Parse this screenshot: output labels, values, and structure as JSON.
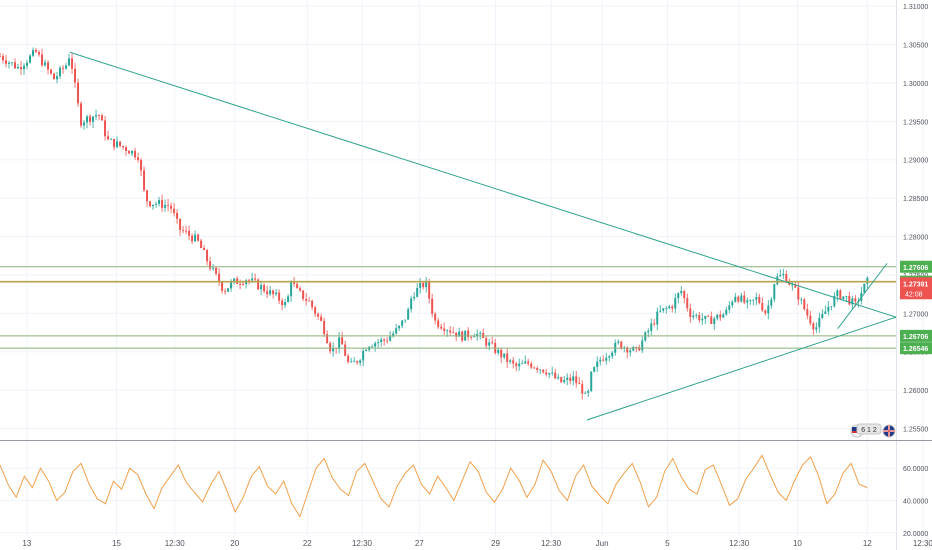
{
  "colors": {
    "up": "#26a69a",
    "down": "#ef5350",
    "trendline": "#2ea28f",
    "level_line": "#8bb174",
    "resistance_line": "#b7a34a",
    "rsi_line": "#f0a04b",
    "current_price_bg": "#ef5350",
    "level_label_bg": "#4caf50",
    "separator": "#9598a1",
    "grid": "#f0f3fa",
    "axis_text": "#50535e"
  },
  "icons": [
    "us-flag-event-icon",
    "uk-flag-event-icon"
  ],
  "event_badge": {
    "text": "6 1 2"
  },
  "chart_data": {
    "type": "candlestick",
    "price_axis": {
      "ticks": [
        "1.31000",
        "1.30500",
        "1.30000",
        "1.29500",
        "1.29000",
        "1.28500",
        "1.28000",
        "1.27500",
        "1.27000",
        "1.26500",
        "1.26000",
        "1.25500"
      ],
      "ylim": [
        1.2535,
        1.3108
      ]
    },
    "time_axis": {
      "ticks": [
        {
          "label": "13",
          "t": 0.03
        },
        {
          "label": "15",
          "t": 0.13
        },
        {
          "label": "12:30",
          "t": 0.195
        },
        {
          "label": "20",
          "t": 0.262
        },
        {
          "label": "22",
          "t": 0.343
        },
        {
          "label": "12:30",
          "t": 0.404
        },
        {
          "label": "27",
          "t": 0.468
        },
        {
          "label": "29",
          "t": 0.553
        },
        {
          "label": "12:30",
          "t": 0.615
        },
        {
          "label": "Jun",
          "t": 0.672
        },
        {
          "label": "5",
          "t": 0.745
        },
        {
          "label": "12:30",
          "t": 0.825
        },
        {
          "label": "10",
          "t": 0.89
        },
        {
          "label": "12",
          "t": 0.968
        },
        {
          "label": "12:30",
          "t": 1.03
        }
      ]
    },
    "price_path": [
      [
        0.0,
        1.3035
      ],
      [
        0.02,
        1.302
      ],
      [
        0.04,
        1.304
      ],
      [
        0.06,
        1.3005
      ],
      [
        0.075,
        1.3025
      ],
      [
        0.078,
        1.304
      ],
      [
        0.085,
        1.2985
      ],
      [
        0.09,
        1.295
      ],
      [
        0.11,
        1.296
      ],
      [
        0.12,
        1.2925
      ],
      [
        0.14,
        1.2915
      ],
      [
        0.155,
        1.2905
      ],
      [
        0.16,
        1.286
      ],
      [
        0.165,
        1.2845
      ],
      [
        0.19,
        1.284
      ],
      [
        0.2,
        1.281
      ],
      [
        0.22,
        1.2795
      ],
      [
        0.235,
        1.276
      ],
      [
        0.25,
        1.273
      ],
      [
        0.26,
        1.274
      ],
      [
        0.275,
        1.2745
      ],
      [
        0.29,
        1.2735
      ],
      [
        0.31,
        1.272
      ],
      [
        0.32,
        1.271
      ],
      [
        0.325,
        1.2745
      ],
      [
        0.33,
        1.273
      ],
      [
        0.345,
        1.2715
      ],
      [
        0.36,
        1.2685
      ],
      [
        0.37,
        1.265
      ],
      [
        0.38,
        1.2665
      ],
      [
        0.39,
        1.263
      ],
      [
        0.4,
        1.264
      ],
      [
        0.41,
        1.266
      ],
      [
        0.43,
        1.2665
      ],
      [
        0.445,
        1.268
      ],
      [
        0.455,
        1.27
      ],
      [
        0.46,
        1.2725
      ],
      [
        0.47,
        1.2735
      ],
      [
        0.475,
        1.274
      ],
      [
        0.485,
        1.269
      ],
      [
        0.5,
        1.268
      ],
      [
        0.515,
        1.267
      ],
      [
        0.53,
        1.2675
      ],
      [
        0.545,
        1.266
      ],
      [
        0.56,
        1.2645
      ],
      [
        0.575,
        1.263
      ],
      [
        0.59,
        1.2635
      ],
      [
        0.61,
        1.2625
      ],
      [
        0.625,
        1.261
      ],
      [
        0.64,
        1.2615
      ],
      [
        0.65,
        1.26
      ],
      [
        0.655,
        1.2585
      ],
      [
        0.66,
        1.262
      ],
      [
        0.67,
        1.264
      ],
      [
        0.69,
        1.266
      ],
      [
        0.71,
        1.265
      ],
      [
        0.72,
        1.267
      ],
      [
        0.735,
        1.27
      ],
      [
        0.75,
        1.271
      ],
      [
        0.76,
        1.273
      ],
      [
        0.77,
        1.27
      ],
      [
        0.79,
        1.269
      ],
      [
        0.81,
        1.27
      ],
      [
        0.82,
        1.2725
      ],
      [
        0.835,
        1.271
      ],
      [
        0.845,
        1.272
      ],
      [
        0.855,
        1.27
      ],
      [
        0.86,
        1.272
      ],
      [
        0.865,
        1.2745
      ],
      [
        0.875,
        1.275
      ],
      [
        0.89,
        1.2725
      ],
      [
        0.9,
        1.27
      ],
      [
        0.91,
        1.268
      ],
      [
        0.925,
        1.271
      ],
      [
        0.935,
        1.2725
      ],
      [
        0.945,
        1.272
      ],
      [
        0.955,
        1.271
      ],
      [
        0.96,
        1.2725
      ],
      [
        0.968,
        1.2741
      ]
    ],
    "horizontal_levels": [
      {
        "label": "1.27606",
        "value": 1.27606,
        "kind": "level"
      },
      {
        "label": "1.27412",
        "value": 1.27412,
        "kind": "resistance"
      },
      {
        "label": "1.26706",
        "value": 1.26706,
        "kind": "level"
      },
      {
        "label": "1.26546",
        "value": 1.26546,
        "kind": "level"
      }
    ],
    "current_price": {
      "label": "1.27391",
      "value": 1.27391,
      "countdown": "42:08"
    },
    "trendlines": [
      {
        "from": [
          0.078,
          1.304
        ],
        "to": [
          1.0,
          1.2695
        ]
      },
      {
        "from": [
          0.655,
          1.2561
        ],
        "to": [
          1.0,
          1.2695
        ]
      },
      {
        "from": [
          0.935,
          1.268
        ],
        "to": [
          0.99,
          1.2765
        ]
      }
    ],
    "oscillator": {
      "ticks": [
        "60.0000",
        "40.0000",
        "20.0000"
      ],
      "ylim": [
        18,
        75
      ],
      "values": [
        62,
        50,
        42,
        55,
        48,
        60,
        52,
        40,
        45,
        58,
        63,
        50,
        41,
        38,
        52,
        47,
        60,
        56,
        44,
        35,
        48,
        55,
        62,
        51,
        45,
        39,
        50,
        58,
        46,
        33,
        42,
        55,
        61,
        49,
        44,
        52,
        38,
        30,
        45,
        60,
        66,
        54,
        47,
        43,
        58,
        63,
        52,
        41,
        36,
        49,
        57,
        62,
        50,
        44,
        55,
        48,
        40,
        52,
        64,
        58,
        45,
        39,
        47,
        60,
        53,
        42,
        50,
        65,
        58,
        46,
        40,
        55,
        62,
        49,
        43,
        38,
        50,
        57,
        63,
        51,
        36,
        42,
        58,
        66,
        55,
        47,
        44,
        59,
        62,
        50,
        37,
        41,
        53,
        60,
        68,
        56,
        45,
        40,
        52,
        62,
        67,
        55,
        38,
        44,
        57,
        63,
        50,
        48
      ]
    }
  }
}
